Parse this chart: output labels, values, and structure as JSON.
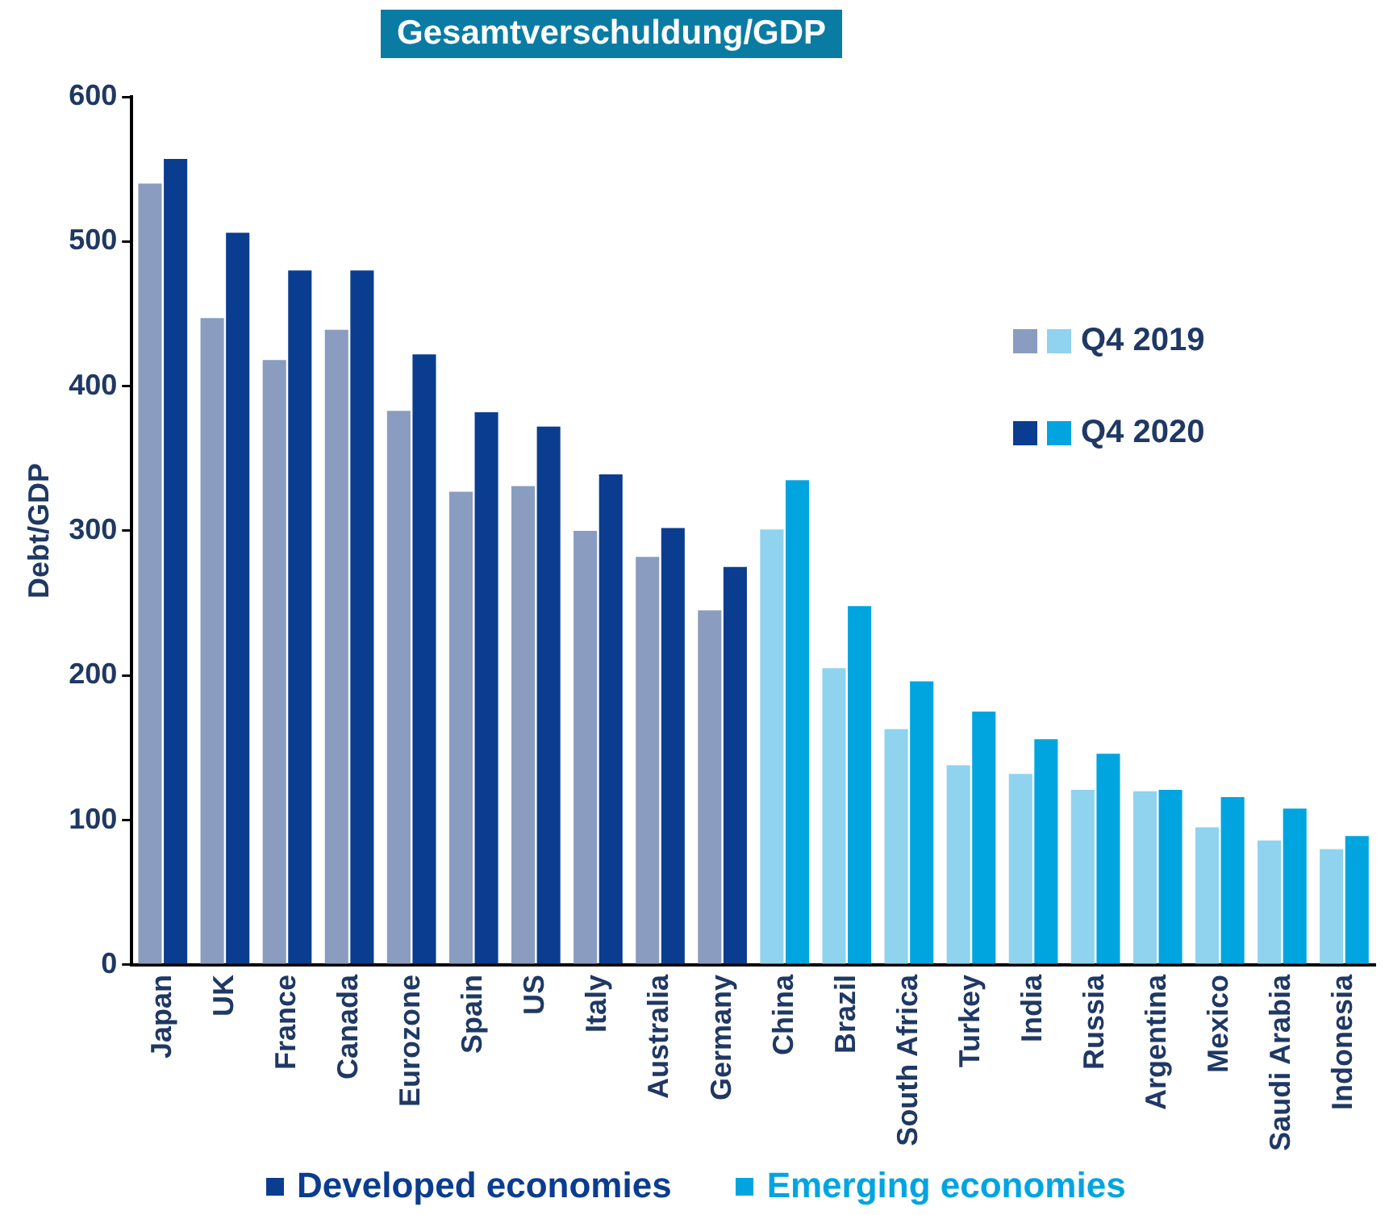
{
  "chart_data": {
    "type": "bar",
    "title": "Gesamtverschuldung/GDP",
    "ylabel": "Debt/GDP",
    "categories": [
      "Japan",
      "UK",
      "France",
      "Canada",
      "Eurozone",
      "Spain",
      "US",
      "Italy",
      "Australia",
      "Germany",
      "China",
      "Brazil",
      "South Africa",
      "Turkey",
      "India",
      "Russia",
      "Argentina",
      "Mexico",
      "Saudi Arabia",
      "Indonesia"
    ],
    "series": [
      {
        "name": "Q4 2019",
        "colors": [
          "#8a9cc0",
          "#8a9cc0",
          "#8a9cc0",
          "#8a9cc0",
          "#8a9cc0",
          "#8a9cc0",
          "#8a9cc0",
          "#8a9cc0",
          "#8a9cc0",
          "#8a9cc0",
          "#8fd3ef",
          "#8fd3ef",
          "#8fd3ef",
          "#8fd3ef",
          "#8fd3ef",
          "#8fd3ef",
          "#8fd3ef",
          "#8fd3ef",
          "#8fd3ef",
          "#8fd3ef"
        ],
        "values": [
          540,
          447,
          418,
          439,
          383,
          327,
          331,
          300,
          282,
          245,
          301,
          205,
          163,
          138,
          132,
          121,
          120,
          95,
          86,
          80
        ]
      },
      {
        "name": "Q4 2020",
        "colors": [
          "#0a3d8f",
          "#0a3d8f",
          "#0a3d8f",
          "#0a3d8f",
          "#0a3d8f",
          "#0a3d8f",
          "#0a3d8f",
          "#0a3d8f",
          "#0a3d8f",
          "#0a3d8f",
          "#00a5e0",
          "#00a5e0",
          "#00a5e0",
          "#00a5e0",
          "#00a5e0",
          "#00a5e0",
          "#00a5e0",
          "#00a5e0",
          "#00a5e0",
          "#00a5e0"
        ],
        "values": [
          557,
          506,
          480,
          480,
          422,
          382,
          372,
          339,
          302,
          275,
          335,
          248,
          196,
          175,
          156,
          146,
          121,
          116,
          108,
          89
        ]
      }
    ],
    "ylim": [
      0,
      600
    ],
    "yticks": [
      0,
      100,
      200,
      300,
      400,
      500,
      600
    ],
    "grid": false,
    "legend": "top right",
    "annotations": [
      "Developed economies",
      "Emerging economies"
    ]
  }
}
